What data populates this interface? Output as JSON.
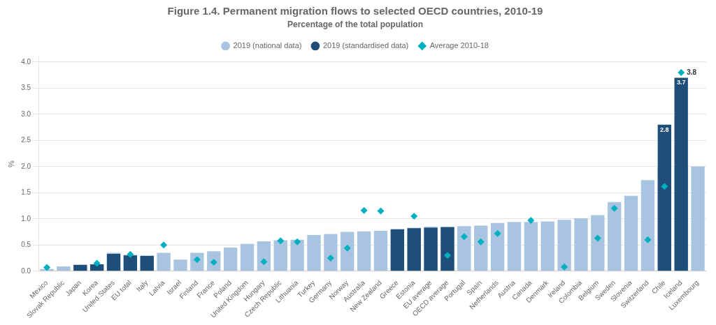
{
  "chart_data": {
    "type": "bar",
    "title": "Figure 1.4. Permanent migration flows to selected OECD countries, 2010-19",
    "subtitle": "Percentage of the total population",
    "y_label": "%",
    "categories": [
      "Mexico",
      "Slovak Republic",
      "Japan",
      "Korea",
      "United States",
      "EU total",
      "Italy",
      "Latvia",
      "Israel",
      "Finland",
      "France",
      "Poland",
      "United Kingdom",
      "Hungary",
      "Czech Republic",
      "Lithuania",
      "Turkey",
      "Germany",
      "Norway",
      "Australia",
      "New Zealand",
      "Greece",
      "Estonia",
      "EU average",
      "OECD average",
      "Portugal",
      "Spain",
      "Netherlands",
      "Austria",
      "Canada",
      "Denmark",
      "Ireland",
      "Colombia",
      "Belgium",
      "Sweden",
      "Slovenia",
      "Switzerland",
      "Chile",
      "Iceland",
      "Luxembourg"
    ],
    "series": [
      {
        "name": "2019 (national data)",
        "type": "bar",
        "color": "#a8c4e0",
        "values": [
          0.04,
          0.09,
          0.12,
          0.13,
          0.35,
          0.31,
          0.3,
          0.35,
          0.22,
          0.35,
          0.38,
          0.45,
          0.52,
          0.57,
          0.59,
          0.6,
          0.69,
          0.71,
          0.75,
          0.76,
          0.77,
          0.8,
          0.83,
          0.85,
          0.85,
          0.86,
          0.87,
          0.92,
          0.94,
          0.94,
          0.95,
          0.98,
          1.01,
          1.07,
          1.32,
          1.44,
          1.74,
          1.98,
          1.99,
          2.0
        ]
      },
      {
        "name": "2019 (standardised data)",
        "type": "bar",
        "color": "#1f4e79",
        "values": [
          null,
          null,
          0.12,
          0.13,
          0.33,
          0.3,
          0.29,
          null,
          null,
          null,
          null,
          null,
          null,
          null,
          null,
          null,
          null,
          null,
          null,
          null,
          null,
          0.8,
          0.82,
          0.83,
          0.84,
          null,
          null,
          null,
          null,
          null,
          null,
          null,
          null,
          null,
          null,
          null,
          null,
          2.8,
          3.7,
          null
        ]
      },
      {
        "name": "Average 2010-18",
        "type": "scatter",
        "marker": "diamond",
        "color": "#00b0c0",
        "values": [
          0.07,
          null,
          null,
          0.15,
          null,
          0.32,
          null,
          0.5,
          null,
          0.22,
          0.17,
          null,
          null,
          0.18,
          0.58,
          0.56,
          null,
          0.25,
          0.44,
          1.16,
          1.15,
          null,
          1.05,
          null,
          0.3,
          0.66,
          0.56,
          0.72,
          null,
          0.97,
          null,
          0.08,
          null,
          0.63,
          1.2,
          null,
          0.6,
          1.62,
          3.8,
          null
        ]
      }
    ],
    "ylim": [
      0,
      4.1
    ],
    "yticks": [
      {
        "value": 0,
        "label": "0.0"
      },
      0.5,
      {
        "value": 1,
        "label": "1.0"
      },
      1.5,
      {
        "value": 2,
        "label": "2.0"
      },
      2.5,
      {
        "value": 3,
        "label": "3.0"
      },
      3.5,
      {
        "value": 4,
        "label": "4.0"
      }
    ],
    "grid": true,
    "legend": "top",
    "annotations": [
      {
        "text": "2.8",
        "series": "2019 (standardised data)",
        "category": "Chile"
      },
      {
        "text": "3.7",
        "series": "2019 (standardised data)",
        "category": "Iceland"
      },
      {
        "text": "3.8",
        "series": "Average 2010-18",
        "category": "Iceland"
      }
    ]
  }
}
